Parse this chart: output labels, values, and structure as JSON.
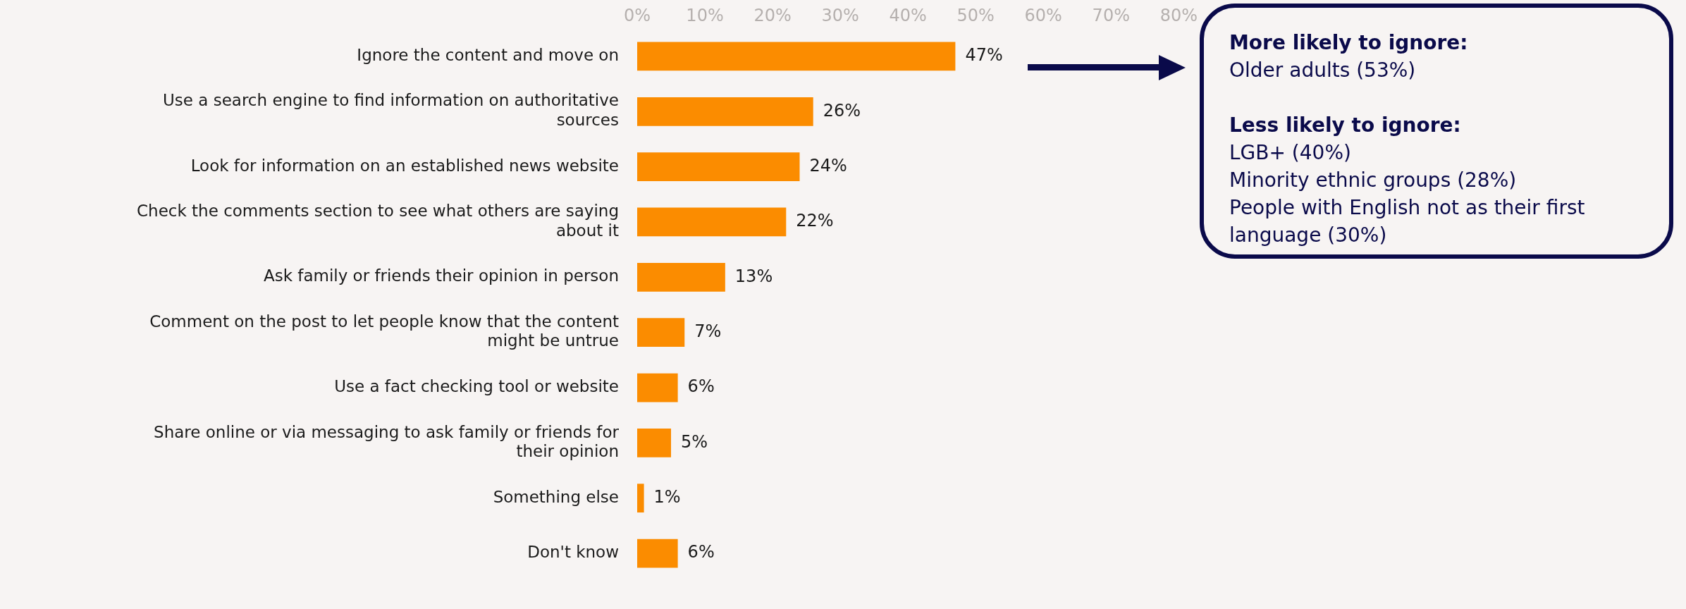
{
  "chart_data": {
    "type": "bar",
    "orientation": "horizontal",
    "categories": [
      "Ignore the content and move on",
      "Use a search engine to find information on authoritative sources",
      "Look for information on an established news website",
      "Check the comments section to see what others are saying about it",
      "Ask family or friends their opinion in person",
      "Comment on the post to let people know that the content might be untrue",
      "Use a fact checking tool or website",
      "Share online or via messaging to ask family or friends for their opinion",
      "Something else",
      "Don't know"
    ],
    "values": [
      47,
      26,
      24,
      22,
      13,
      7,
      6,
      5,
      1,
      6
    ],
    "color": "#fb8c00",
    "xlim": [
      0,
      80
    ],
    "xticks": [
      {
        "value": 0,
        "label": "0%"
      },
      {
        "value": 10,
        "label": "10%"
      },
      {
        "value": 20,
        "label": "20%"
      },
      {
        "value": 30,
        "label": "30%"
      },
      {
        "value": 40,
        "label": "40%"
      },
      {
        "value": 50,
        "label": "50%"
      },
      {
        "value": 60,
        "label": "60%"
      },
      {
        "value": 70,
        "label": "70%"
      },
      {
        "value": 80,
        "label": "80%"
      }
    ],
    "value_labels": [
      "47%",
      "26%",
      "24%",
      "22%",
      "13%",
      "7%",
      "6%",
      "5%",
      "1%",
      "6%"
    ],
    "grid": false,
    "legend": false,
    "annotations": [
      "More likely to ignore:",
      "Older adults (53%)",
      "Less likely to ignore:",
      "LGB+ (40%)",
      "Minority ethnic groups (28%)",
      "People with English not as their first language (30%)"
    ]
  }
}
